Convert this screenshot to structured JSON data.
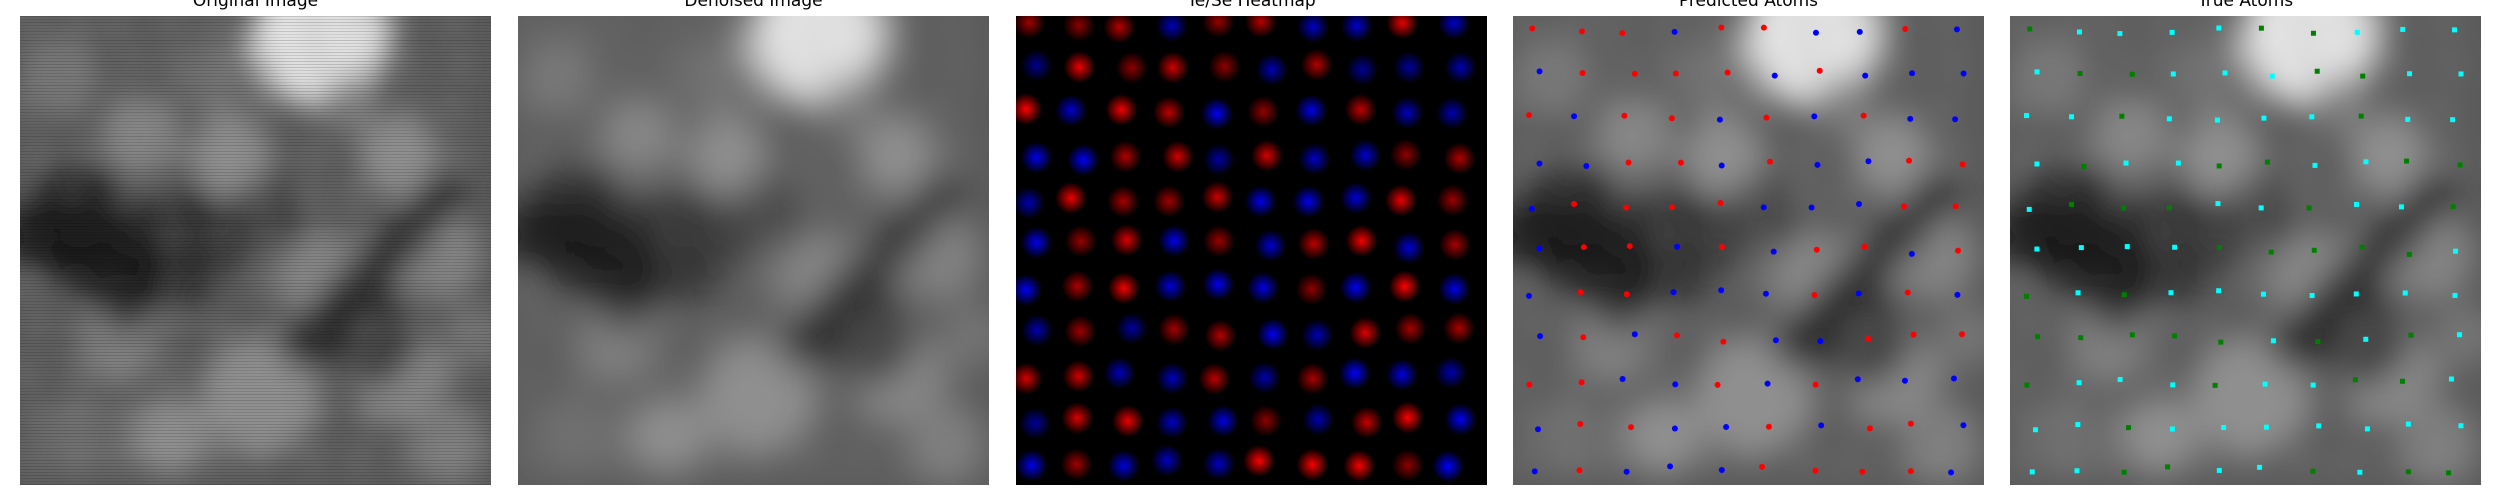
{
  "figure": {
    "panels": [
      {
        "title": "Original Image",
        "kind": "grayscale"
      },
      {
        "title": "Denoised Image",
        "kind": "grayscale-smooth"
      },
      {
        "title": "Te/Se Heatmap",
        "kind": "heatmap"
      },
      {
        "title": "Predicted Atoms",
        "kind": "predicted"
      },
      {
        "title": "True Atoms",
        "kind": "true"
      }
    ],
    "colors": {
      "te": "#ff0000",
      "se": "#0000ff",
      "true_te": "#00ffff",
      "true_se": "#008000"
    }
  }
}
